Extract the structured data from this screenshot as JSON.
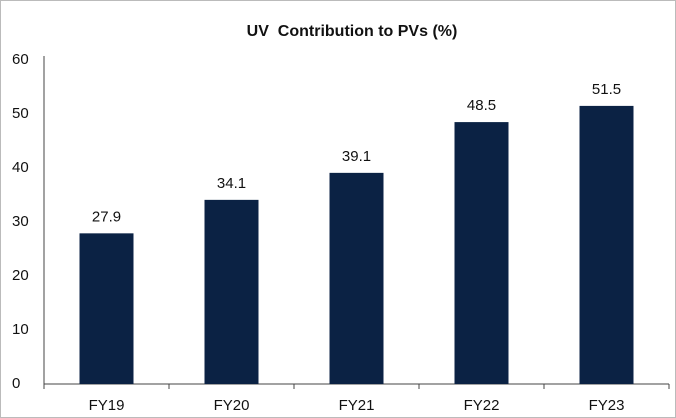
{
  "chart_data": {
    "type": "bar",
    "title": "UV  Contribution to PVs (%)",
    "categories": [
      "FY19",
      "FY20",
      "FY21",
      "FY22",
      "FY23"
    ],
    "values": [
      27.9,
      34.1,
      39.1,
      48.5,
      51.5
    ],
    "color": "#0b2244",
    "ylim": [
      0,
      60
    ],
    "yticks": [
      0,
      10,
      20,
      30,
      40,
      50,
      60
    ],
    "grid": false
  }
}
